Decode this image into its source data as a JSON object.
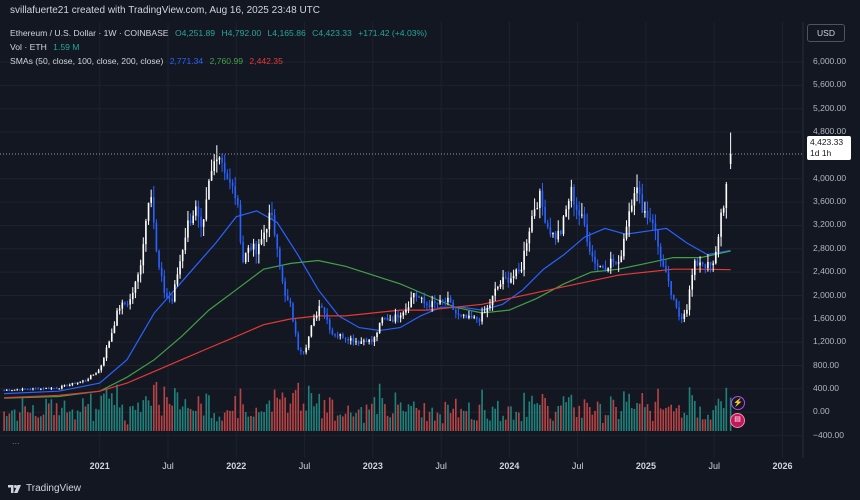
{
  "header": {
    "credit": "svillafuerte21 created with TradingView.com, Aug 16, 2025 23:48 UTC"
  },
  "legend": {
    "symbol": "Ethereum / U.S. Dollar · 1W · COINBASE",
    "open": "O4,251.89",
    "high": "H4,792.00",
    "low": "L4,165.86",
    "close": "C4,423.33",
    "change": "+171.42 (+4.03%)",
    "vol_label": "Vol · ETH",
    "vol_value": "1.59 M",
    "sma_label": "SMAs (50, close, 100, close, 200, close)",
    "sma50": "2,771.34",
    "sma100": "2,760.99",
    "sma200": "2,442.35"
  },
  "currency": "USD",
  "price_tag": {
    "price": "4,423.33",
    "countdown": "1d 1h"
  },
  "footer": {
    "brand": "TradingView",
    "more": "..."
  },
  "colors": {
    "bg": "#131722",
    "up": "#ffffff",
    "down": "#2962ff",
    "sma50": "#2962ff",
    "sma100": "#43a047",
    "sma200": "#e53935",
    "vol_up": "#26a69a",
    "vol_down": "#ef5350"
  },
  "icons": [
    "tradingview-logo-icon",
    "lightning-event-icon",
    "us-flag-event-icon"
  ],
  "chart_data": {
    "type": "candlestick",
    "title": "Ethereum / U.S. Dollar · 1W · COINBASE",
    "ylim": [
      -550,
      6400
    ],
    "y_ticks": [
      6000,
      5600,
      5200,
      4800,
      4000,
      3600,
      3200,
      2800,
      2400,
      2000,
      1600,
      1200,
      800,
      400,
      0,
      -400
    ],
    "y_tick_labels": [
      "6,000.00",
      "5,600.00",
      "5,200.00",
      "4,800.00",
      "4,000.00",
      "3,600.00",
      "3,200.00",
      "2,800.00",
      "2,400.00",
      "2,000.00",
      "1,600.00",
      "1,200.00",
      "800.00",
      "400.00",
      "0.00",
      "−400.00"
    ],
    "x_ticks": [
      2021,
      2021.5,
      2022,
      2022.5,
      2023,
      2023.5,
      2024,
      2024.5,
      2025,
      2025.5,
      2026
    ],
    "x_tick_labels": [
      "2021",
      "Jul",
      "2022",
      "Jul",
      "2023",
      "Jul",
      "2024",
      "Jul",
      "2025",
      "Jul",
      "2026"
    ],
    "x_tick_bold": [
      true,
      false,
      true,
      false,
      true,
      false,
      true,
      false,
      true,
      false,
      true
    ],
    "xlim": [
      2020.27,
      2026.15
    ],
    "close_anchors": [
      [
        2020.3,
        380
      ],
      [
        2020.5,
        400
      ],
      [
        2020.7,
        420
      ],
      [
        2020.9,
        550
      ],
      [
        2021.0,
        730
      ],
      [
        2021.08,
        1300
      ],
      [
        2021.14,
        1800
      ],
      [
        2021.22,
        1900
      ],
      [
        2021.29,
        2400
      ],
      [
        2021.35,
        3500
      ],
      [
        2021.37,
        4000
      ],
      [
        2021.42,
        2600
      ],
      [
        2021.48,
        2000
      ],
      [
        2021.53,
        1900
      ],
      [
        2021.58,
        2500
      ],
      [
        2021.64,
        3200
      ],
      [
        2021.7,
        3500
      ],
      [
        2021.75,
        3000
      ],
      [
        2021.8,
        3900
      ],
      [
        2021.86,
        4500
      ],
      [
        2021.9,
        4300
      ],
      [
        2021.95,
        3900
      ],
      [
        2022.0,
        3700
      ],
      [
        2022.05,
        2600
      ],
      [
        2022.1,
        2900
      ],
      [
        2022.15,
        2700
      ],
      [
        2022.22,
        3200
      ],
      [
        2022.25,
        3400
      ],
      [
        2022.3,
        2900
      ],
      [
        2022.35,
        2000
      ],
      [
        2022.4,
        1800
      ],
      [
        2022.45,
        1100
      ],
      [
        2022.5,
        1050
      ],
      [
        2022.55,
        1450
      ],
      [
        2022.62,
        1900
      ],
      [
        2022.7,
        1350
      ],
      [
        2022.78,
        1300
      ],
      [
        2022.85,
        1250
      ],
      [
        2022.9,
        1200
      ],
      [
        2022.95,
        1250
      ],
      [
        2023.0,
        1200
      ],
      [
        2023.07,
        1600
      ],
      [
        2023.15,
        1600
      ],
      [
        2023.25,
        1800
      ],
      [
        2023.3,
        2050
      ],
      [
        2023.38,
        1850
      ],
      [
        2023.45,
        1850
      ],
      [
        2023.55,
        1900
      ],
      [
        2023.62,
        1650
      ],
      [
        2023.7,
        1600
      ],
      [
        2023.78,
        1600
      ],
      [
        2023.85,
        1800
      ],
      [
        2023.9,
        2100
      ],
      [
        2023.95,
        2250
      ],
      [
        2024.0,
        2300
      ],
      [
        2024.08,
        2400
      ],
      [
        2024.13,
        3000
      ],
      [
        2024.18,
        3500
      ],
      [
        2024.22,
        3700
      ],
      [
        2024.28,
        3200
      ],
      [
        2024.33,
        3000
      ],
      [
        2024.38,
        3100
      ],
      [
        2024.45,
        3800
      ],
      [
        2024.5,
        3450
      ],
      [
        2024.55,
        3200
      ],
      [
        2024.6,
        2700
      ],
      [
        2024.65,
        2500
      ],
      [
        2024.7,
        2500
      ],
      [
        2024.75,
        2600
      ],
      [
        2024.8,
        2500
      ],
      [
        2024.87,
        3400
      ],
      [
        2024.92,
        3900
      ],
      [
        2024.96,
        3600
      ],
      [
        2025.0,
        3400
      ],
      [
        2025.05,
        3300
      ],
      [
        2025.1,
        2700
      ],
      [
        2025.15,
        2300
      ],
      [
        2025.2,
        1900
      ],
      [
        2025.25,
        1600
      ],
      [
        2025.3,
        1800
      ],
      [
        2025.35,
        2500
      ],
      [
        2025.4,
        2600
      ],
      [
        2025.45,
        2500
      ],
      [
        2025.5,
        2500
      ],
      [
        2025.55,
        3400
      ],
      [
        2025.58,
        3700
      ],
      [
        2025.62,
        4423.33
      ]
    ],
    "last_candle": {
      "open": 4251.89,
      "high": 4792.0,
      "low": 4165.86,
      "close": 4423.33
    },
    "series": [
      {
        "name": "SMA 50",
        "last": 2771.34,
        "points": [
          [
            2020.3,
            320
          ],
          [
            2020.7,
            360
          ],
          [
            2021.0,
            500
          ],
          [
            2021.2,
            900
          ],
          [
            2021.4,
            1700
          ],
          [
            2021.55,
            2100
          ],
          [
            2021.7,
            2500
          ],
          [
            2021.85,
            2900
          ],
          [
            2022.0,
            3350
          ],
          [
            2022.15,
            3450
          ],
          [
            2022.3,
            3250
          ],
          [
            2022.45,
            2700
          ],
          [
            2022.6,
            2100
          ],
          [
            2022.75,
            1650
          ],
          [
            2022.9,
            1450
          ],
          [
            2023.05,
            1400
          ],
          [
            2023.2,
            1450
          ],
          [
            2023.35,
            1650
          ],
          [
            2023.5,
            1800
          ],
          [
            2023.65,
            1800
          ],
          [
            2023.8,
            1750
          ],
          [
            2023.95,
            1850
          ],
          [
            2024.1,
            2100
          ],
          [
            2024.25,
            2450
          ],
          [
            2024.4,
            2700
          ],
          [
            2024.55,
            3000
          ],
          [
            2024.7,
            3150
          ],
          [
            2024.85,
            3050
          ],
          [
            2025.0,
            3100
          ],
          [
            2025.15,
            3150
          ],
          [
            2025.3,
            2900
          ],
          [
            2025.45,
            2700
          ],
          [
            2025.62,
            2771.34
          ]
        ]
      },
      {
        "name": "SMA 100",
        "last": 2760.99,
        "points": [
          [
            2020.3,
            240
          ],
          [
            2020.7,
            270
          ],
          [
            2021.0,
            360
          ],
          [
            2021.2,
            600
          ],
          [
            2021.4,
            900
          ],
          [
            2021.6,
            1300
          ],
          [
            2021.8,
            1750
          ],
          [
            2022.0,
            2100
          ],
          [
            2022.2,
            2450
          ],
          [
            2022.4,
            2550
          ],
          [
            2022.6,
            2600
          ],
          [
            2022.8,
            2500
          ],
          [
            2023.0,
            2350
          ],
          [
            2023.2,
            2200
          ],
          [
            2023.4,
            2000
          ],
          [
            2023.6,
            1800
          ],
          [
            2023.8,
            1700
          ],
          [
            2024.0,
            1750
          ],
          [
            2024.2,
            1950
          ],
          [
            2024.4,
            2200
          ],
          [
            2024.6,
            2400
          ],
          [
            2024.8,
            2450
          ],
          [
            2025.0,
            2550
          ],
          [
            2025.2,
            2650
          ],
          [
            2025.4,
            2650
          ],
          [
            2025.62,
            2760.99
          ]
        ]
      },
      {
        "name": "SMA 200",
        "last": 2442.35,
        "points": [
          [
            2020.3,
            250
          ],
          [
            2020.7,
            290
          ],
          [
            2021.0,
            360
          ],
          [
            2021.2,
            500
          ],
          [
            2021.4,
            700
          ],
          [
            2021.6,
            900
          ],
          [
            2021.8,
            1100
          ],
          [
            2022.0,
            1300
          ],
          [
            2022.2,
            1500
          ],
          [
            2022.4,
            1600
          ],
          [
            2022.6,
            1650
          ],
          [
            2022.8,
            1650
          ],
          [
            2023.0,
            1700
          ],
          [
            2023.2,
            1750
          ],
          [
            2023.4,
            1750
          ],
          [
            2023.6,
            1800
          ],
          [
            2023.8,
            1850
          ],
          [
            2024.0,
            1950
          ],
          [
            2024.2,
            2050
          ],
          [
            2024.4,
            2150
          ],
          [
            2024.6,
            2250
          ],
          [
            2024.8,
            2350
          ],
          [
            2025.0,
            2400
          ],
          [
            2025.2,
            2450
          ],
          [
            2025.4,
            2450
          ],
          [
            2025.62,
            2442.35
          ]
        ]
      }
    ]
  }
}
